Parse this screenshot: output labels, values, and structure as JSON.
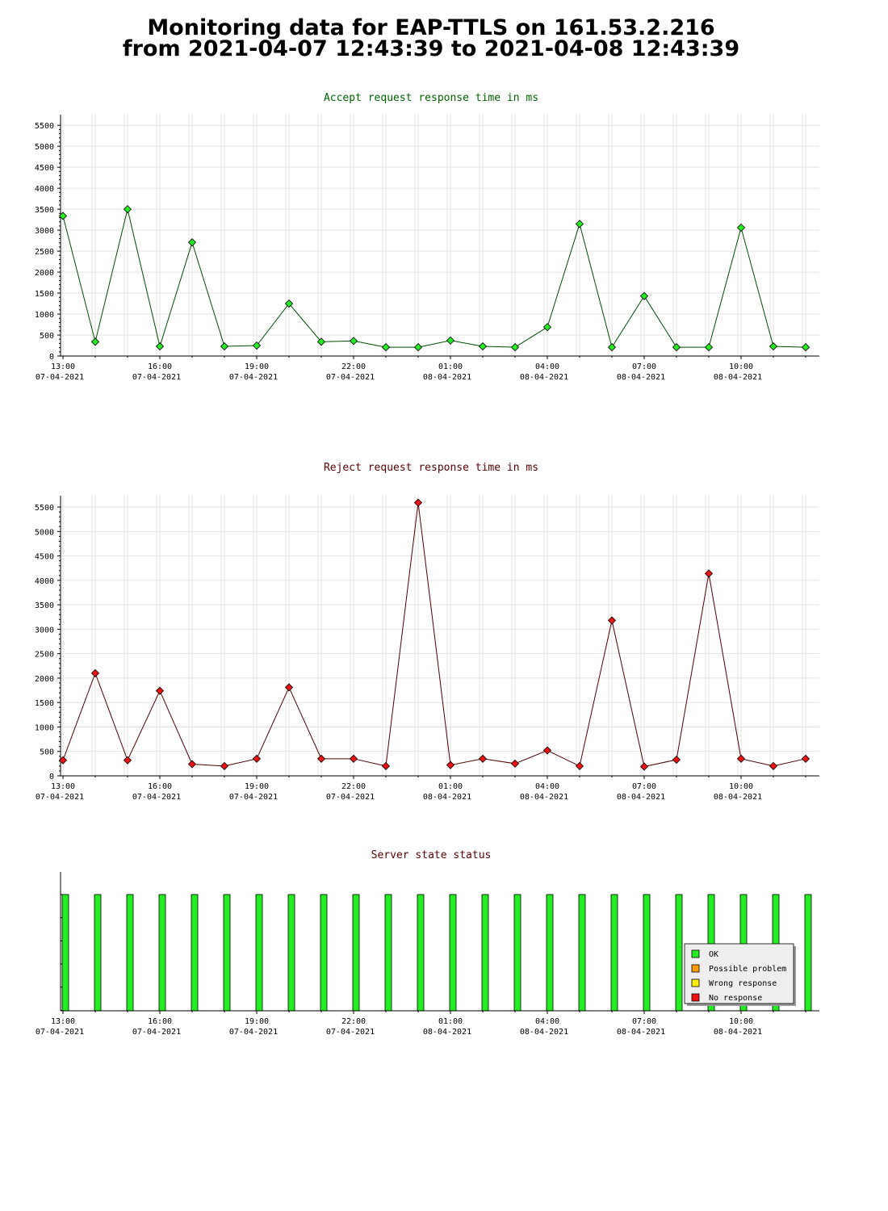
{
  "page": {
    "title_line1": "Monitoring data for EAP-TTLS on 161.53.2.216",
    "title_line2": "from 2021-04-07 12:43:39 to 2021-04-08 12:43:39"
  },
  "x_ticks": [
    {
      "time": "13:00",
      "date": "07-04-2021"
    },
    {
      "time": "16:00",
      "date": "07-04-2021"
    },
    {
      "time": "19:00",
      "date": "07-04-2021"
    },
    {
      "time": "22:00",
      "date": "07-04-2021"
    },
    {
      "time": "01:00",
      "date": "08-04-2021"
    },
    {
      "time": "04:00",
      "date": "08-04-2021"
    },
    {
      "time": "07:00",
      "date": "08-04-2021"
    },
    {
      "time": "10:00",
      "date": "08-04-2021"
    }
  ],
  "chart_data": [
    {
      "type": "line",
      "title": "Accept request response time in ms",
      "title_color": "#006400",
      "line_color": "#004d00",
      "marker_color": "#22ee22",
      "x": [
        "2021-04-07 13:00",
        "2021-04-07 14:00",
        "2021-04-07 15:00",
        "2021-04-07 16:00",
        "2021-04-07 17:00",
        "2021-04-07 18:00",
        "2021-04-07 19:00",
        "2021-04-07 20:00",
        "2021-04-07 21:00",
        "2021-04-07 22:00",
        "2021-04-07 23:00",
        "2021-04-08 00:00",
        "2021-04-08 01:00",
        "2021-04-08 02:00",
        "2021-04-08 03:00",
        "2021-04-08 04:00",
        "2021-04-08 05:00",
        "2021-04-08 06:00",
        "2021-04-08 07:00",
        "2021-04-08 08:00",
        "2021-04-08 09:00",
        "2021-04-08 10:00",
        "2021-04-08 11:00",
        "2021-04-08 12:00"
      ],
      "values": [
        3340,
        340,
        3500,
        230,
        2710,
        230,
        250,
        1250,
        340,
        360,
        210,
        210,
        370,
        230,
        210,
        690,
        3150,
        210,
        1430,
        210,
        210,
        3060,
        230,
        210
      ],
      "ylim": [
        0,
        5600
      ],
      "y_ticks": [
        0,
        500,
        1000,
        1500,
        2000,
        2500,
        3000,
        3500,
        4000,
        4500,
        5000,
        5500
      ],
      "grid": true
    },
    {
      "type": "line",
      "title": "Reject request response time in ms",
      "title_color": "#5a0000",
      "line_color": "#4d0000",
      "marker_color": "#ee1111",
      "x": [
        "2021-04-07 13:00",
        "2021-04-07 14:00",
        "2021-04-07 15:00",
        "2021-04-07 16:00",
        "2021-04-07 17:00",
        "2021-04-07 18:00",
        "2021-04-07 19:00",
        "2021-04-07 20:00",
        "2021-04-07 21:00",
        "2021-04-07 22:00",
        "2021-04-07 23:00",
        "2021-04-08 00:00",
        "2021-04-08 01:00",
        "2021-04-08 02:00",
        "2021-04-08 03:00",
        "2021-04-08 04:00",
        "2021-04-08 05:00",
        "2021-04-08 06:00",
        "2021-04-08 07:00",
        "2021-04-08 08:00",
        "2021-04-08 09:00",
        "2021-04-08 10:00",
        "2021-04-08 11:00",
        "2021-04-08 12:00"
      ],
      "values": [
        320,
        2100,
        320,
        1740,
        240,
        200,
        350,
        1810,
        350,
        350,
        200,
        5590,
        220,
        350,
        250,
        520,
        200,
        3180,
        190,
        330,
        4140,
        350,
        200,
        350
      ],
      "ylim": [
        0,
        5600
      ],
      "y_ticks": [
        0,
        500,
        1000,
        1500,
        2000,
        2500,
        3000,
        3500,
        4000,
        4500,
        5000,
        5500
      ],
      "grid": true
    },
    {
      "type": "bar",
      "title": "Server state status",
      "title_color": "#5a0000",
      "x": [
        "2021-04-07 13:00",
        "2021-04-07 14:00",
        "2021-04-07 15:00",
        "2021-04-07 16:00",
        "2021-04-07 17:00",
        "2021-04-07 18:00",
        "2021-04-07 19:00",
        "2021-04-07 20:00",
        "2021-04-07 21:00",
        "2021-04-07 22:00",
        "2021-04-07 23:00",
        "2021-04-08 00:00",
        "2021-04-08 01:00",
        "2021-04-08 02:00",
        "2021-04-08 03:00",
        "2021-04-08 04:00",
        "2021-04-08 05:00",
        "2021-04-08 06:00",
        "2021-04-08 07:00",
        "2021-04-08 08:00",
        "2021-04-08 09:00",
        "2021-04-08 10:00",
        "2021-04-08 11:00",
        "2021-04-08 12:00"
      ],
      "states": [
        "OK",
        "OK",
        "OK",
        "OK",
        "OK",
        "OK",
        "OK",
        "OK",
        "OK",
        "OK",
        "OK",
        "OK",
        "OK",
        "OK",
        "OK",
        "OK",
        "OK",
        "OK",
        "OK",
        "OK",
        "OK",
        "OK",
        "OK",
        "OK"
      ],
      "grid": false,
      "legend_position": "bottom-right",
      "legend": [
        {
          "label": "OK",
          "color": "#22ee22"
        },
        {
          "label": "Possible problem",
          "color": "#ff9900"
        },
        {
          "label": "Wrong response",
          "color": "#ffee00"
        },
        {
          "label": "No response",
          "color": "#ee1111"
        }
      ]
    }
  ]
}
